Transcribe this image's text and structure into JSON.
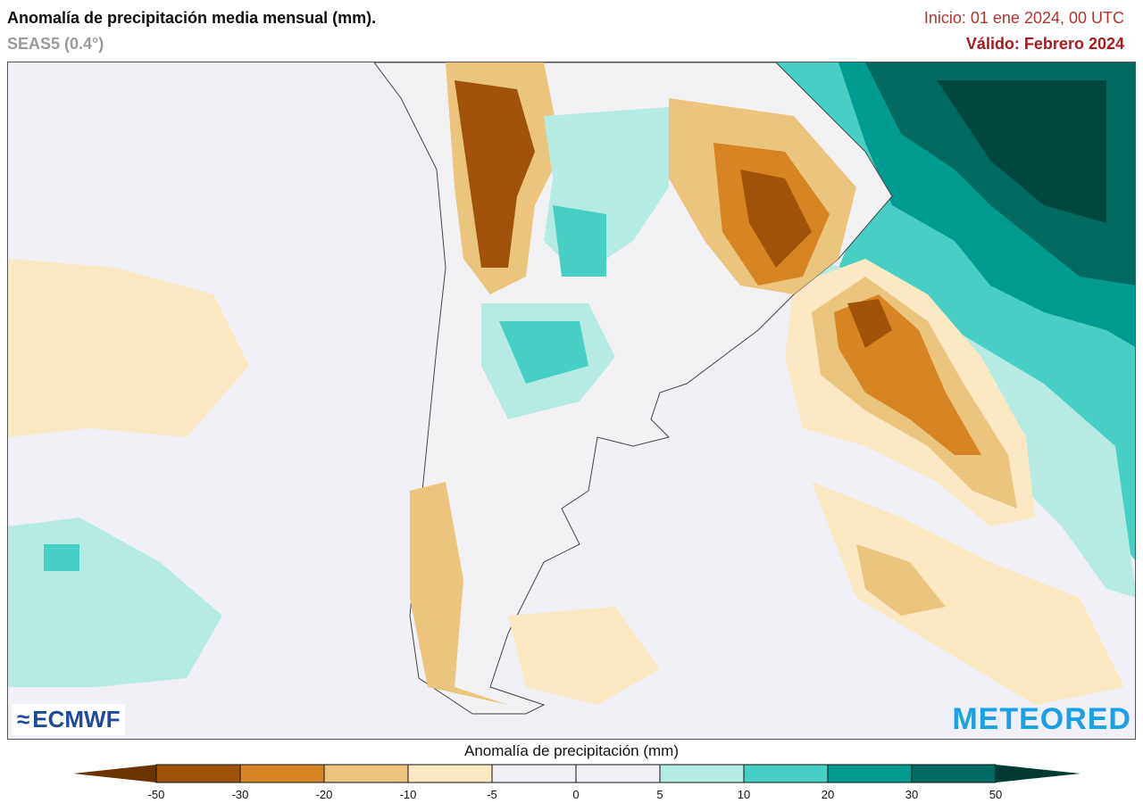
{
  "header": {
    "title": "Anomalía de precipitación media mensual (mm).",
    "subtitle": "SEAS5 (0.4°)",
    "init": "Inicio: 01 ene 2024, 00 UTC",
    "valid": "Válido: Febrero 2024"
  },
  "map": {
    "region": "South America (southern cone) and adjacent oceans",
    "logos": {
      "left": "ECMWF",
      "right": "METEORED"
    }
  },
  "colorbar": {
    "title": "Anomalía de precipitación (mm)",
    "ticks": [
      "-50",
      "-30",
      "-20",
      "-10",
      "-5",
      "0",
      "5",
      "10",
      "20",
      "30",
      "50"
    ],
    "colors": {
      "below_-50": "#6b3300",
      "-50_-30": "#a0520a",
      "-30_-20": "#d68424",
      "-20_-10": "#ebc47e",
      "-10_-5": "#fbe9c4",
      "-5_0": "#f0f0f6",
      "0_5": "#f0f0f6",
      "5_10": "#b6ebe4",
      "10_20": "#48cfc3",
      "20_30": "#009b90",
      "30_50": "#006a60",
      "above_50": "#003a30"
    }
  }
}
